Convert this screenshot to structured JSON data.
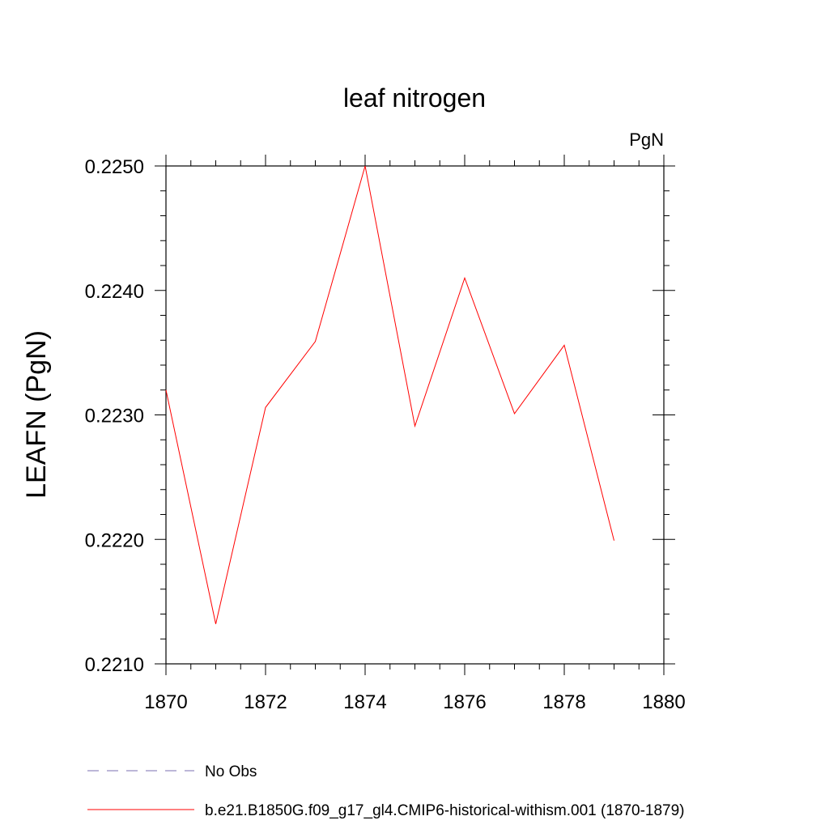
{
  "chart_data": {
    "type": "line",
    "title": "leaf nitrogen",
    "units_label": "PgN",
    "ylabel": "LEAFN  (PgN)",
    "xlabel": "",
    "xlim": [
      1870,
      1880
    ],
    "ylim": [
      0.221,
      0.225
    ],
    "x_ticks": [
      1870,
      1872,
      1874,
      1876,
      1878,
      1880
    ],
    "x_tick_labels": [
      "1870",
      "1872",
      "1874",
      "1876",
      "1878",
      "1880"
    ],
    "y_ticks": [
      0.221,
      0.222,
      0.223,
      0.224,
      0.225
    ],
    "y_tick_labels": [
      "0.2210",
      "0.2220",
      "0.2230",
      "0.2240",
      "0.2250"
    ],
    "x_minor_step": 0.5,
    "y_minor_step": 0.0002,
    "grid": false,
    "legend_position": "bottom",
    "series": [
      {
        "name": "No Obs",
        "color": "#7b6fb0",
        "dash": true,
        "x": [],
        "values": []
      },
      {
        "name": "b.e21.B1850G.f09_g17_gl4.CMIP6-historical-withism.001 (1870-1879)",
        "color": "#ff0000",
        "dash": false,
        "x": [
          1870,
          1871,
          1872,
          1873,
          1874,
          1875,
          1876,
          1877,
          1878,
          1879
        ],
        "values": [
          0.2232,
          0.22132,
          0.22306,
          0.22359,
          0.225,
          0.22291,
          0.2241,
          0.22301,
          0.22356,
          0.22199
        ]
      }
    ]
  }
}
